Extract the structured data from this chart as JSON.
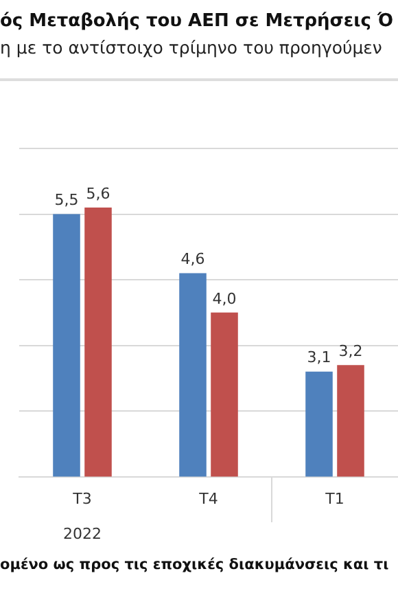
{
  "chart_data": {
    "type": "bar",
    "title": "ός Μεταβολής του ΑΕΠ σε Μετρήσεις Ό",
    "subtitle": "η με το αντίστοιχο τρίμηνο του προηγούμεν",
    "categories": [
      "T3",
      "T4",
      "T1"
    ],
    "series": [
      {
        "color": "#4f81bd",
        "values": [
          5.5,
          4.6,
          3.1
        ],
        "value_labels": [
          "5,5",
          "4,6",
          "3,1"
        ]
      },
      {
        "color": "#c0504d",
        "values": [
          5.6,
          4.0,
          3.2
        ],
        "value_labels": [
          "5,6",
          "4,0",
          "3,2"
        ]
      }
    ],
    "ylim": [
      1.5,
      6.5
    ],
    "yticks": [
      {
        "value": 1.5,
        "label": null
      },
      {
        "value": 2.5,
        "label": null
      },
      {
        "value": 3.5,
        "label": null
      },
      {
        "value": 4.5,
        "label": null
      },
      {
        "value": 5.5,
        "label": null
      },
      {
        "value": 6.5,
        "label": null
      }
    ],
    "grid": "y",
    "tick_labels": "x",
    "annotations": [
      "2022",
      "ομένο ως προς τις εποχικές διακυμάνσεις και τι"
    ]
  }
}
